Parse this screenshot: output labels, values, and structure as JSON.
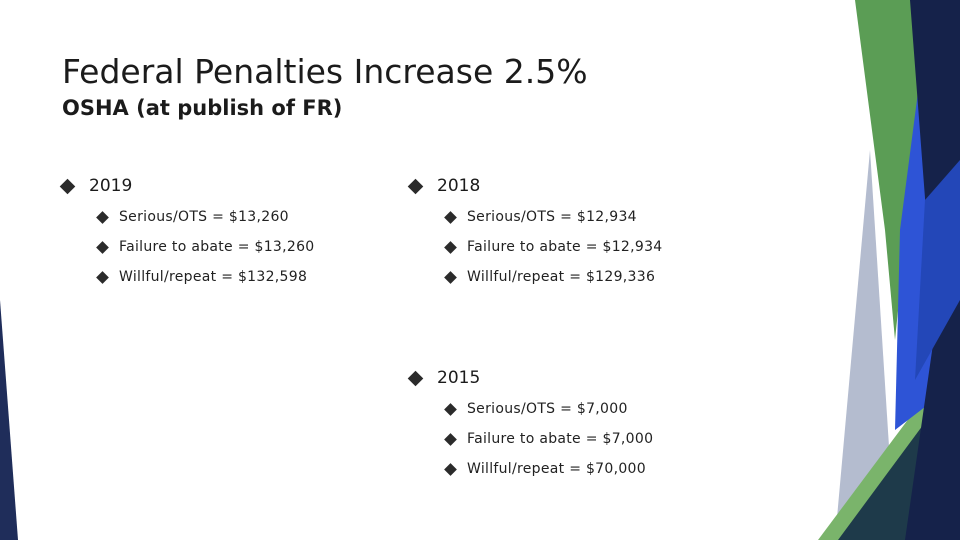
{
  "slide": {
    "title": "Federal Penalties Increase 2.5%",
    "subtitle": "OSHA (at publish of FR)"
  },
  "groups": [
    {
      "label": "2019",
      "items": [
        "Serious/OTS = $13,260",
        "Failure to abate = $13,260",
        "Willful/repeat = $132,598"
      ]
    },
    {
      "label": "2018",
      "items": [
        "Serious/OTS = $12,934",
        "Failure to abate = $12,934",
        "Willful/repeat = $129,336"
      ]
    },
    {
      "label": "2015",
      "items": [
        "Serious/OTS = $7,000",
        "Failure to abate = $7,000",
        "Willful/repeat = $70,000"
      ]
    }
  ],
  "colors": {
    "navy": "#1f2d5a",
    "dark_navy": "#15224a",
    "royal_blue": "#2e54d6",
    "green": "#5b9d55",
    "light_green": "#7ab46b",
    "gray": "#b4bccf",
    "dark_teal": "#1e3a4a",
    "text": "#1b1b1b"
  }
}
